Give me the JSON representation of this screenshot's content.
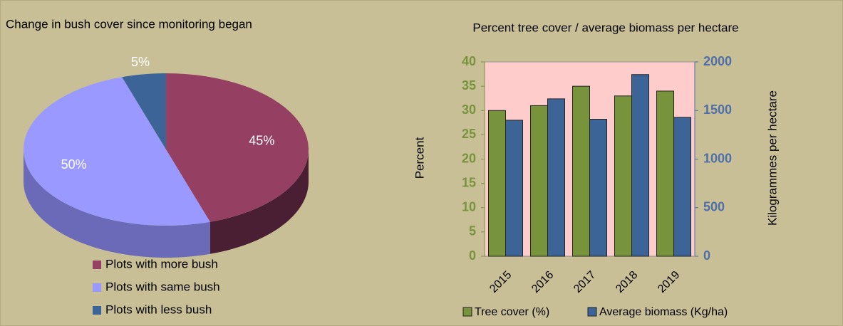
{
  "chart_data": [
    {
      "type": "pie3d",
      "title": "Change in bush cover since monitoring began",
      "categories": [
        "Plots with more bush",
        "Plots with same bush",
        "Plots with less bush"
      ],
      "values": [
        45,
        50,
        5
      ],
      "value_labels": [
        "45%",
        "50%",
        "5%"
      ],
      "colors": [
        "#953f62",
        "#9999ff",
        "#3c6496"
      ],
      "side_colors": [
        "#4a1f33",
        "#6a6ab8",
        "#223c5e"
      ],
      "legend": "bottom"
    },
    {
      "type": "bar",
      "title": "Percent tree cover / average biomass per hectare",
      "categories": [
        "2015",
        "2016",
        "2017",
        "2018",
        "2019"
      ],
      "series": [
        {
          "name": "Tree cover (%)",
          "color": "#77933c",
          "values": [
            30,
            31,
            35,
            33,
            34
          ]
        },
        {
          "name": "Average biomass (Kg/ha)",
          "color": "#3c6496",
          "axis": "y2",
          "values": [
            1400,
            1620,
            1410,
            1870,
            1430
          ]
        }
      ],
      "ylabel": "Percent",
      "y2label": "Kilogrammes  per hectare",
      "ylim": [
        0,
        40
      ],
      "yticks": [
        0,
        5,
        10,
        15,
        20,
        25,
        30,
        35,
        40
      ],
      "y2lim": [
        0,
        2000
      ],
      "y2ticks": [
        0,
        500,
        1000,
        1500,
        2000
      ],
      "plot_background": "#ffcccc",
      "grid": false,
      "legend": "bottom"
    }
  ]
}
